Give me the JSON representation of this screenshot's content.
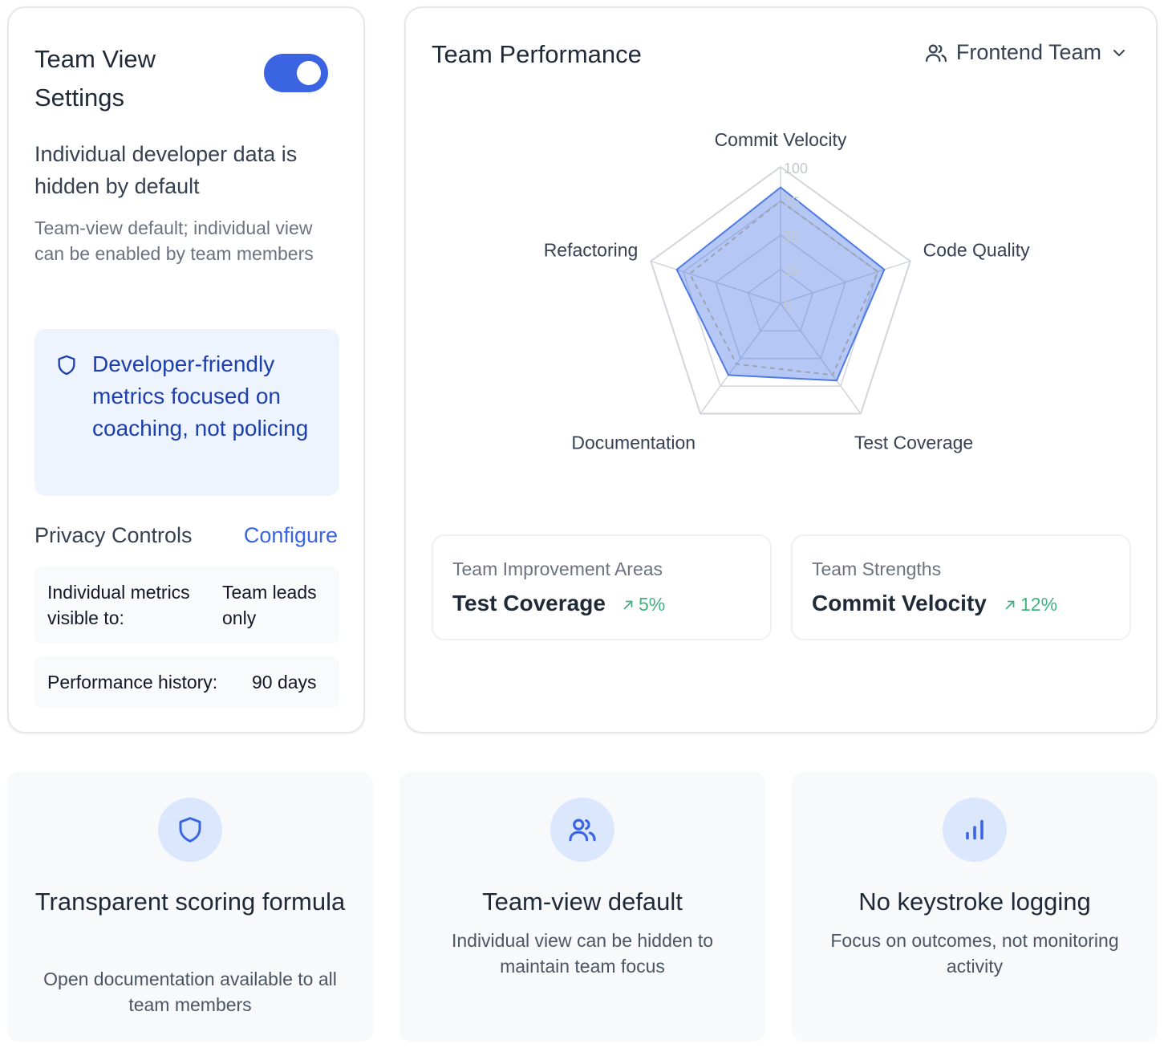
{
  "settings": {
    "title": "Team View Settings",
    "toggle_on": true,
    "description": "Individual developer data is hidden by default",
    "subtext": "Team-view default; individual view can be enabled by team members",
    "callout": "Developer-friendly metrics focused on coaching, not policing",
    "privacy_title": "Privacy Controls",
    "configure_label": "Configure",
    "rows": [
      {
        "label": "Individual metrics visible to:",
        "value": "Team leads only"
      },
      {
        "label": "Performance history:",
        "value": "90 days"
      }
    ]
  },
  "performance": {
    "title": "Team Performance",
    "team_selector": "Frontend Team"
  },
  "chart_data": {
    "type": "radar",
    "axes": [
      "Commit Velocity",
      "Code Quality",
      "Test Coverage",
      "Documentation",
      "Refactoring"
    ],
    "tick_labels": [
      "0",
      "25",
      "50",
      "75",
      "100"
    ],
    "range": [
      0,
      100
    ],
    "series": [
      {
        "values": [
          85,
          80,
          70,
          65,
          80
        ],
        "style": "filled",
        "color": "#4f7ae6"
      },
      {
        "values": [
          75,
          75,
          65,
          55,
          70
        ],
        "style": "dashed",
        "color": "#9ca3af"
      }
    ]
  },
  "stats": {
    "improvement": {
      "label": "Team Improvement Areas",
      "value": "Test Coverage",
      "change": "5%"
    },
    "strength": {
      "label": "Team Strengths",
      "value": "Commit Velocity",
      "change": "12%"
    }
  },
  "features": [
    {
      "icon": "shield-icon",
      "title": "Transparent scoring formula",
      "desc": "Open documentation available to all team members"
    },
    {
      "icon": "users-icon",
      "title": "Team-view default",
      "desc": "Individual view can be hidden to maintain team focus"
    },
    {
      "icon": "bar-chart-icon",
      "title": "No keystroke logging",
      "desc": "Focus on outcomes, not monitoring activity"
    }
  ],
  "colors": {
    "accent": "#3b64e3",
    "positive": "#3fb27f",
    "callout_bg": "#eef4fe",
    "callout_text": "#1e40af"
  }
}
